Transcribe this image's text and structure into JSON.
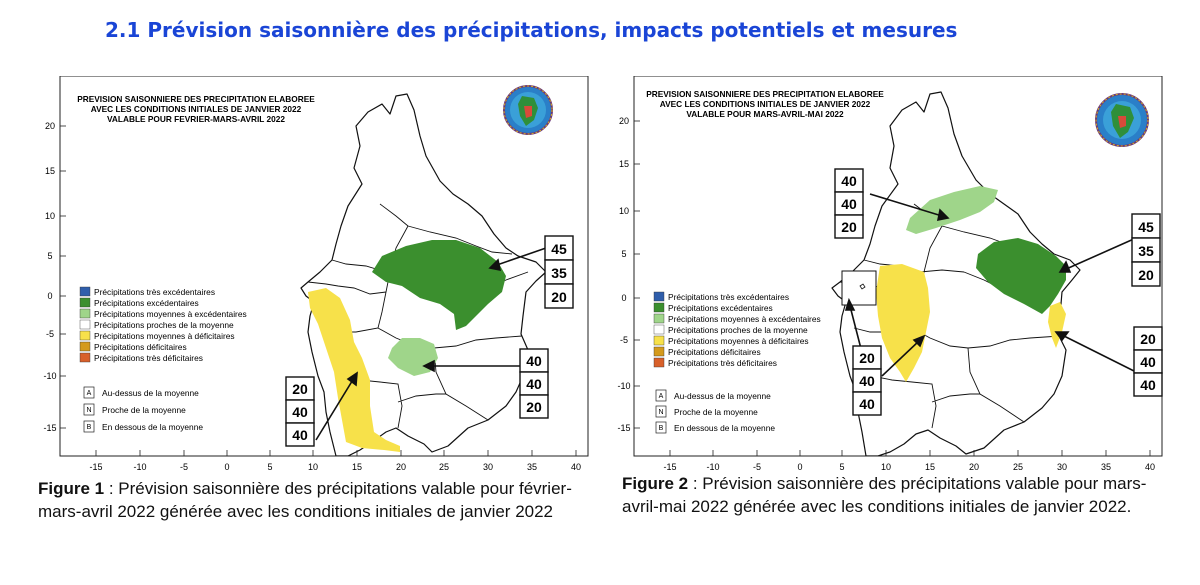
{
  "heading": "2.1 Prévision saisonnière des précipitations, impacts potentiels et mesures",
  "maps": [
    {
      "title_lines": [
        "PREVISION SAISONNIERE DES PRECIPITATION ELABOREE",
        "AVEC LES CONDITIONS INITIALES DE JANVIER 2022",
        "VALABLE POUR FEVRIER-MARS-AVRIL 2022"
      ],
      "x_ticks": [
        "-15",
        "-10",
        "-5",
        "0",
        "5",
        "10",
        "15",
        "20",
        "25",
        "30",
        "35",
        "40"
      ],
      "y_ticks": [
        "20",
        "15",
        "10",
        "5",
        "0",
        "-5",
        "-10",
        "-15"
      ],
      "probability_boxes": [
        {
          "values": [
            "45",
            "35",
            "20"
          ]
        },
        {
          "values": [
            "40",
            "40",
            "20"
          ]
        },
        {
          "values": [
            "20",
            "40",
            "40"
          ]
        }
      ],
      "caption_label": "Figure 1",
      "caption_text": " : Prévision saisonnière des précipitations valable pour février-mars-avril 2022 générée  avec les conditions initiales de janvier 2022"
    },
    {
      "title_lines": [
        "PREVISION SAISONNIERE DES PRECIPITATION ELABOREE",
        "AVEC LES CONDITIONS INITIALES DE JANVIER 2022",
        "VALABLE POUR MARS-AVRIL-MAI 2022"
      ],
      "x_ticks": [
        "-15",
        "-10",
        "-5",
        "0",
        "5",
        "10",
        "15",
        "20",
        "25",
        "30",
        "35",
        "40"
      ],
      "y_ticks": [
        "20",
        "15",
        "10",
        "5",
        "0",
        "-5",
        "-10",
        "-15"
      ],
      "probability_boxes": [
        {
          "values": [
            "40",
            "40",
            "20"
          ]
        },
        {
          "values": [
            "45",
            "35",
            "20"
          ]
        },
        {
          "values": [
            "20",
            "40",
            "40"
          ]
        },
        {
          "values": [
            "20",
            "40",
            "40"
          ]
        }
      ],
      "caption_label": "Figure 2",
      "caption_text": " : Prévision saisonnière des précipitations valable pour mars-avril-mai 2022 générée  avec les conditions initiales de janvier 2022."
    }
  ],
  "legend": {
    "categories": [
      {
        "label": "Précipitations très excédentaires",
        "color": "#2f5eab"
      },
      {
        "label": "Précipitations excédentaires",
        "color": "#3b8f2e"
      },
      {
        "label": "Précipitations moyennes à excédentaires",
        "color": "#9fd58a"
      },
      {
        "label": "Précipitations proches de la moyenne",
        "color": "#ffffff"
      },
      {
        "label": "Précipitations moyennes à déficitaires",
        "color": "#f7e14a"
      },
      {
        "label": "Précipitations déficitaires",
        "color": "#d49a1c"
      },
      {
        "label": "Précipitations très déficitaires",
        "color": "#d8602a"
      }
    ],
    "keys": [
      {
        "letter": "A",
        "label": "Au-dessus de la moyenne"
      },
      {
        "letter": "N",
        "label": "Proche de la moyenne"
      },
      {
        "letter": "B",
        "label": "En dessous de la moyenne"
      }
    ]
  }
}
